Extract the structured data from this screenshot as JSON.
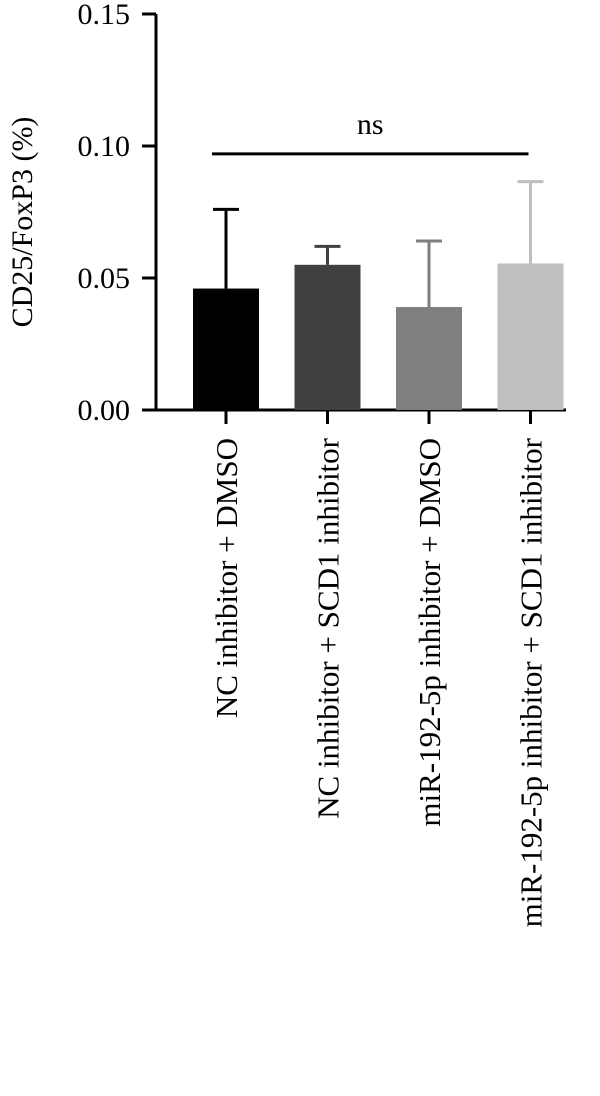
{
  "chart_data": {
    "type": "bar",
    "title": "",
    "xlabel": "",
    "ylabel": "CD25/FoxP3 (%)",
    "ylim": [
      0,
      0.15
    ],
    "yticks": [
      "0.00",
      "0.05",
      "0.10",
      "0.15"
    ],
    "grid": false,
    "legend": "none",
    "categories": [
      "NC inhibitor + DMSO",
      "NC inhibitor + SCD1 inhibitor",
      "miR-192-5p inhibitor + DMSO",
      "miR-192-5p inhibitor + SCD1 inhibitor"
    ],
    "values": [
      0.046,
      0.055,
      0.039,
      0.0555
    ],
    "errors": [
      0.03,
      0.007,
      0.025,
      0.031
    ],
    "colors": [
      "#000000",
      "#404040",
      "#7f7f7f",
      "#bfbfbf"
    ],
    "annotation": {
      "text": "ns",
      "from_category": 0,
      "to_category": 3,
      "y": 0.097
    }
  }
}
